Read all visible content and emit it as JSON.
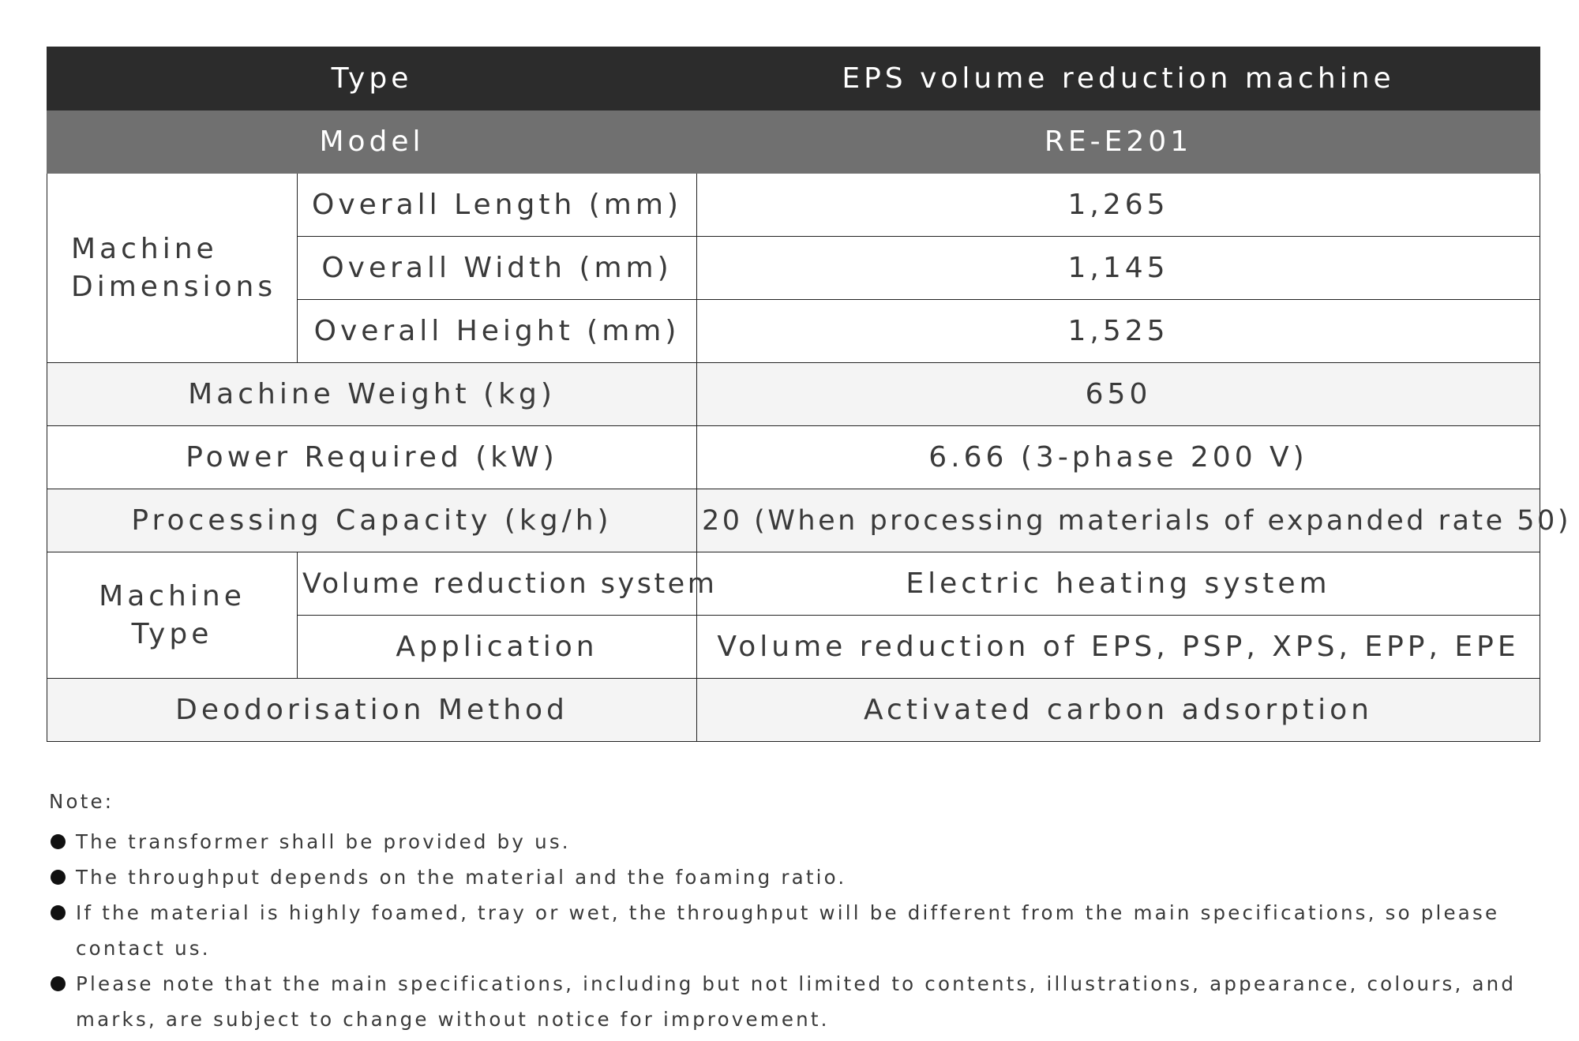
{
  "table": {
    "header": {
      "label": "Type",
      "value": "EPS volume reduction machine"
    },
    "model": {
      "label": "Model",
      "value": "RE-E201"
    },
    "dimensions": {
      "group_label": "Machine Dimensions",
      "rows": [
        {
          "label": "Overall Length (mm)",
          "value": "1,265"
        },
        {
          "label": "Overall Width (mm)",
          "value": "1,145"
        },
        {
          "label": "Overall Height (mm)",
          "value": "1,525"
        }
      ]
    },
    "weight": {
      "label": "Machine Weight (kg)",
      "value": "650"
    },
    "power": {
      "label": "Power Required (kW)",
      "value": "6.66 (3-phase 200 V)"
    },
    "capacity": {
      "label": "Processing Capacity (kg/h)",
      "value": "20 (When processing materials of expanded rate 50)"
    },
    "machine_type": {
      "group_label": "Machine Type",
      "rows": [
        {
          "label": "Volume reduction system",
          "value": "Electric heating system"
        },
        {
          "label": "Application",
          "value": "Volume reduction of EPS, PSP, XPS, EPP, EPE"
        }
      ]
    },
    "deodorisation": {
      "label": "Deodorisation Method",
      "value": "Activated carbon adsorption"
    }
  },
  "notes": {
    "title": "Note:",
    "items": [
      "The transformer shall be provided by us.",
      "The throughput depends on the material and the foaming ratio.",
      "If the material is highly foamed, tray or wet, the throughput will be different from the main specifications, so please contact us.",
      "Please note that the main specifications, including but not limited to contents, illustrations, appearance, colours, and marks, are subject to change without notice for improvement."
    ]
  }
}
